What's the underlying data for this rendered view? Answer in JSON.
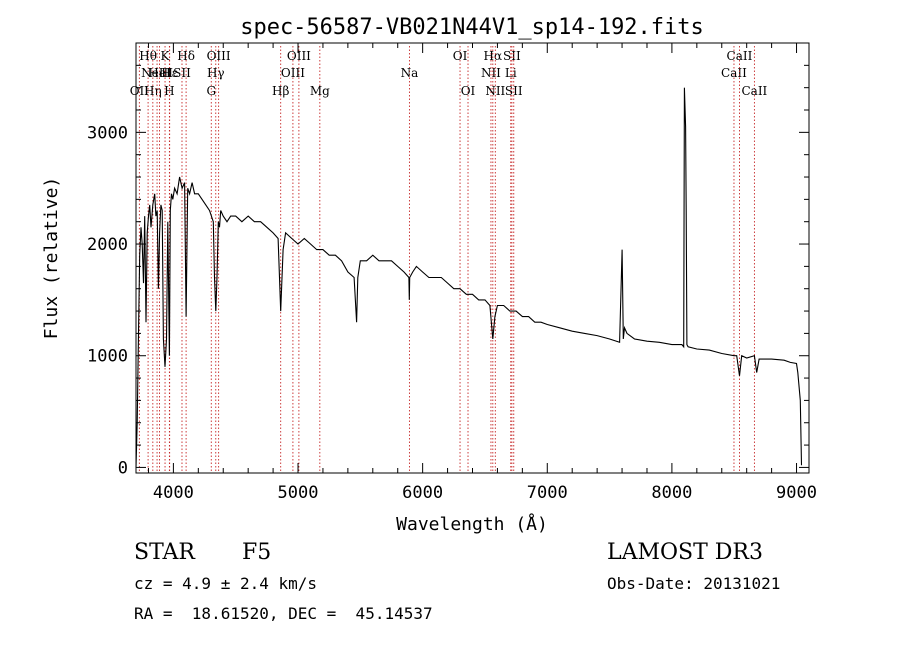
{
  "chart_data": {
    "type": "line",
    "title": "spec-56587-VB021N44V1_sp14-192.fits",
    "xlabel": "Wavelength (Å)",
    "ylabel": "Flux (relative)",
    "xlim": [
      3700,
      9100
    ],
    "ylim": [
      -50,
      3800
    ],
    "xticks": [
      4000,
      5000,
      6000,
      7000,
      8000,
      9000
    ],
    "yticks": [
      0,
      1000,
      2000,
      3000
    ],
    "grid": false,
    "series": [
      {
        "name": "flux",
        "x": [
          3700,
          3710,
          3720,
          3730,
          3740,
          3750,
          3760,
          3770,
          3780,
          3790,
          3800,
          3810,
          3820,
          3835,
          3850,
          3860,
          3870,
          3880,
          3889,
          3900,
          3910,
          3920,
          3933,
          3945,
          3955,
          3968,
          3975,
          3985,
          3995,
          4010,
          4030,
          4050,
          4070,
          4090,
          4102,
          4115,
          4130,
          4150,
          4170,
          4200,
          4230,
          4260,
          4290,
          4320,
          4330,
          4340,
          4350,
          4360,
          4370,
          4380,
          4400,
          4430,
          4460,
          4500,
          4550,
          4600,
          4650,
          4700,
          4750,
          4800,
          4840,
          4861,
          4880,
          4900,
          4950,
          5000,
          5050,
          5100,
          5150,
          5200,
          5250,
          5300,
          5350,
          5400,
          5450,
          5470,
          5480,
          5500,
          5550,
          5600,
          5650,
          5700,
          5750,
          5800,
          5850,
          5890,
          5893,
          5896,
          5920,
          5950,
          6000,
          6050,
          6100,
          6150,
          6200,
          6250,
          6300,
          6350,
          6400,
          6450,
          6500,
          6540,
          6563,
          6580,
          6600,
          6650,
          6700,
          6750,
          6800,
          6850,
          6900,
          6950,
          7000,
          7100,
          7200,
          7300,
          7400,
          7500,
          7580,
          7600,
          7610,
          7620,
          7640,
          7700,
          7800,
          7900,
          8000,
          8080,
          8095,
          8100,
          8110,
          8115,
          8120,
          8130,
          8200,
          8300,
          8400,
          8498,
          8520,
          8542,
          8560,
          8600,
          8662,
          8680,
          8700,
          8800,
          8900,
          8950,
          9000,
          9010,
          9030,
          9040
        ],
        "values": [
          0,
          400,
          1200,
          1900,
          2150,
          2000,
          1650,
          2250,
          1300,
          2100,
          2250,
          2350,
          2150,
          2350,
          2450,
          2250,
          2300,
          1600,
          2100,
          2350,
          2300,
          1150,
          900,
          1150,
          2200,
          1000,
          2300,
          2450,
          2400,
          2500,
          2450,
          2600,
          2500,
          2550,
          1350,
          2500,
          2450,
          2550,
          2450,
          2450,
          2400,
          2350,
          2300,
          2200,
          1700,
          1400,
          1700,
          2200,
          2150,
          2300,
          2250,
          2200,
          2250,
          2250,
          2200,
          2250,
          2200,
          2200,
          2150,
          2100,
          2050,
          1400,
          1950,
          2100,
          2050,
          2000,
          2050,
          2000,
          1950,
          1950,
          1900,
          1900,
          1850,
          1750,
          1700,
          1300,
          1700,
          1850,
          1850,
          1900,
          1850,
          1850,
          1850,
          1800,
          1750,
          1700,
          1500,
          1700,
          1750,
          1800,
          1750,
          1700,
          1700,
          1700,
          1650,
          1600,
          1600,
          1550,
          1550,
          1500,
          1500,
          1450,
          1150,
          1350,
          1450,
          1450,
          1400,
          1400,
          1350,
          1350,
          1300,
          1300,
          1280,
          1250,
          1220,
          1200,
          1180,
          1150,
          1120,
          1950,
          1150,
          1250,
          1200,
          1150,
          1130,
          1120,
          1100,
          1100,
          1080,
          3400,
          3050,
          2300,
          1100,
          1080,
          1060,
          1050,
          1020,
          1000,
          1000,
          820,
          1000,
          980,
          1000,
          850,
          970,
          970,
          960,
          940,
          930,
          850,
          600,
          20
        ]
      }
    ],
    "lines": [
      {
        "x": 3727,
        "labels": [
          "OII"
        ],
        "row": 3
      },
      {
        "x": 3797,
        "labels": [
          "Hθ"
        ],
        "row": 1
      },
      {
        "x": 3835,
        "labels": [
          "Hη"
        ],
        "row": 3
      },
      {
        "x": 3869,
        "labels": [
          "NeIII"
        ],
        "row": 2
      },
      {
        "x": 3889,
        "labels": [
          "HeI"
        ],
        "row": 2
      },
      {
        "x": 3933,
        "labels": [
          "K"
        ],
        "row": 1
      },
      {
        "x": 3968,
        "labels": [
          "H"
        ],
        "row": 3
      },
      {
        "x": 3970,
        "labels": [
          "Hε"
        ],
        "row": 2
      },
      {
        "x": 4069,
        "labels": [
          "SII"
        ],
        "row": 2
      },
      {
        "x": 4102,
        "labels": [
          "Hδ"
        ],
        "row": 1
      },
      {
        "x": 4304,
        "labels": [
          "G"
        ],
        "row": 3
      },
      {
        "x": 4340,
        "labels": [
          "Hγ"
        ],
        "row": 2
      },
      {
        "x": 4363,
        "labels": [
          "OIII"
        ],
        "row": 1
      },
      {
        "x": 4861,
        "labels": [
          "Hβ"
        ],
        "row": 3
      },
      {
        "x": 4959,
        "labels": [
          "OIII"
        ],
        "row": 2
      },
      {
        "x": 5007,
        "labels": [
          "OIII"
        ],
        "row": 1
      },
      {
        "x": 5175,
        "labels": [
          "Mg"
        ],
        "row": 3
      },
      {
        "x": 5894,
        "labels": [
          "Na"
        ],
        "row": 2
      },
      {
        "x": 6300,
        "labels": [
          "OI"
        ],
        "row": 1
      },
      {
        "x": 6364,
        "labels": [
          "OI"
        ],
        "row": 3
      },
      {
        "x": 6548,
        "labels": [
          "NII"
        ],
        "row": 2
      },
      {
        "x": 6563,
        "labels": [
          "Hα"
        ],
        "row": 1
      },
      {
        "x": 6583,
        "labels": [
          "NII"
        ],
        "row": 3
      },
      {
        "x": 6707,
        "labels": [
          "Li"
        ],
        "row": 2
      },
      {
        "x": 6716,
        "labels": [
          "SII"
        ],
        "row": 1
      },
      {
        "x": 6731,
        "labels": [
          "SII"
        ],
        "row": 3
      },
      {
        "x": 8498,
        "labels": [
          "CaII"
        ],
        "row": 2
      },
      {
        "x": 8542,
        "labels": [
          "CaII"
        ],
        "row": 1
      },
      {
        "x": 8662,
        "labels": [
          "CaII"
        ],
        "row": 3
      }
    ]
  },
  "footer": {
    "class": "STAR",
    "subclass": "F5",
    "survey": "LAMOST DR3",
    "cz": "cz = 4.9 ± 2.4 km/s",
    "obs_date": "Obs-Date: 20131021",
    "coords": "RA =  18.61520, DEC =  45.14537"
  }
}
